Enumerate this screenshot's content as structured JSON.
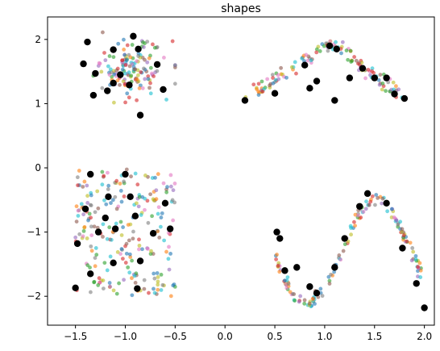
{
  "chart_data": {
    "type": "scatter",
    "title": "shapes",
    "xlabel": "",
    "ylabel": "",
    "xlim": [
      -1.78,
      2.1
    ],
    "ylim": [
      -2.45,
      2.35
    ],
    "xticks": [
      -1.5,
      -1.0,
      -0.5,
      0.0,
      0.5,
      1.0,
      1.5,
      2.0
    ],
    "xtick_labels": [
      "−1.5",
      "−1.0",
      "−0.5",
      "0.0",
      "0.5",
      "1.0",
      "1.5",
      "2.0"
    ],
    "yticks": [
      -2,
      -1,
      0,
      1,
      2
    ],
    "ytick_labels": [
      "−2",
      "−1",
      "0",
      "1",
      "2"
    ],
    "grid": false,
    "legend": "none",
    "palette": [
      "#1f77b4",
      "#ff7f0e",
      "#2ca02c",
      "#d62728",
      "#9467bd",
      "#8c564b",
      "#e377c2",
      "#7f7f7f",
      "#bcbd22",
      "#17becf"
    ],
    "centroid_color": "#000000",
    "clusters": [
      {
        "shape": "blob",
        "center": [
          -0.95,
          1.55
        ],
        "spread_x": 0.18,
        "spread_y": 0.22,
        "x_range": [
          -1.6,
          -0.5
        ],
        "y_range": [
          0.8,
          2.15
        ],
        "n_points": 140
      },
      {
        "shape": "triangle",
        "apex": [
          1.05,
          1.95
        ],
        "left_end": [
          0.2,
          1.05
        ],
        "right_end": [
          1.8,
          1.1
        ],
        "n_points": 130
      },
      {
        "shape": "square",
        "x_range": [
          -1.5,
          -0.5
        ],
        "y_range": [
          -2.0,
          -0.02
        ],
        "n_points": 230
      },
      {
        "shape": "sine",
        "x_range": [
          0.5,
          2.0
        ],
        "amplitude": 0.8,
        "period": 1.4,
        "phase_x": 0.82,
        "offset": -1.3,
        "n_points": 150
      }
    ],
    "centroids": [
      [
        -1.38,
        1.96
      ],
      [
        -0.92,
        2.05
      ],
      [
        -1.42,
        1.62
      ],
      [
        -1.12,
        1.84
      ],
      [
        -0.87,
        1.85
      ],
      [
        -1.3,
        1.47
      ],
      [
        -1.05,
        1.45
      ],
      [
        -0.68,
        1.61
      ],
      [
        -1.32,
        1.13
      ],
      [
        -1.12,
        1.32
      ],
      [
        -0.96,
        1.29
      ],
      [
        -0.62,
        1.22
      ],
      [
        -1.18,
        1.2
      ],
      [
        -0.85,
        0.82
      ],
      [
        0.2,
        1.05
      ],
      [
        0.5,
        1.16
      ],
      [
        0.8,
        1.6
      ],
      [
        0.92,
        1.35
      ],
      [
        1.05,
        1.9
      ],
      [
        1.12,
        1.85
      ],
      [
        1.38,
        1.55
      ],
      [
        1.5,
        1.4
      ],
      [
        1.62,
        1.4
      ],
      [
        1.7,
        1.15
      ],
      [
        1.8,
        1.08
      ],
      [
        0.85,
        1.24
      ],
      [
        1.1,
        1.05
      ],
      [
        1.25,
        1.4
      ],
      [
        -1.35,
        -0.1
      ],
      [
        -1.0,
        -0.1
      ],
      [
        -1.4,
        -0.64
      ],
      [
        -1.17,
        -0.45
      ],
      [
        -0.95,
        -0.45
      ],
      [
        -0.6,
        -0.55
      ],
      [
        -1.2,
        -0.78
      ],
      [
        -0.9,
        -0.75
      ],
      [
        -0.55,
        -0.95
      ],
      [
        -1.48,
        -1.18
      ],
      [
        -1.27,
        -1.0
      ],
      [
        -1.1,
        -0.95
      ],
      [
        -0.72,
        -1.02
      ],
      [
        -1.35,
        -1.65
      ],
      [
        -1.12,
        -1.48
      ],
      [
        -0.85,
        -1.45
      ],
      [
        -1.5,
        -1.87
      ],
      [
        -0.88,
        -1.88
      ],
      [
        0.52,
        -1.0
      ],
      [
        0.55,
        -1.1
      ],
      [
        0.6,
        -1.6
      ],
      [
        0.72,
        -1.55
      ],
      [
        0.85,
        -1.85
      ],
      [
        0.92,
        -1.95
      ],
      [
        1.1,
        -1.55
      ],
      [
        1.2,
        -1.1
      ],
      [
        1.35,
        -0.6
      ],
      [
        1.43,
        -0.4
      ],
      [
        1.62,
        -0.55
      ],
      [
        1.78,
        -1.25
      ],
      [
        1.92,
        -1.8
      ],
      [
        2.0,
        -2.18
      ]
    ]
  }
}
